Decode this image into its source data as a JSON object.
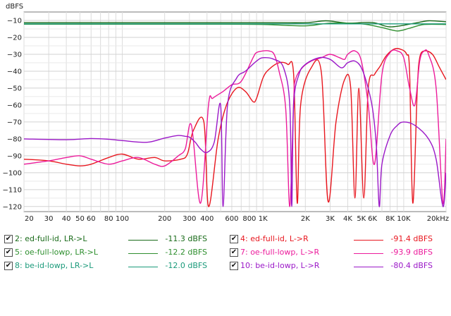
{
  "chart_data": {
    "type": "line",
    "ylabel": "dBFS",
    "xscale": "log",
    "xlim": [
      20,
      20000
    ],
    "ylim": [
      -123,
      -5
    ],
    "grid": true,
    "x_ticks": [
      {
        "value": 20,
        "label": "20"
      },
      {
        "value": 30,
        "label": "30"
      },
      {
        "value": 40,
        "label": "40"
      },
      {
        "value": 50,
        "label": "50"
      },
      {
        "value": 60,
        "label": "60"
      },
      {
        "value": 80,
        "label": "80"
      },
      {
        "value": 100,
        "label": "100"
      },
      {
        "value": 200,
        "label": "200"
      },
      {
        "value": 300,
        "label": "300"
      },
      {
        "value": 400,
        "label": "400"
      },
      {
        "value": 600,
        "label": "600"
      },
      {
        "value": 800,
        "label": "800"
      },
      {
        "value": 1000,
        "label": "1K"
      },
      {
        "value": 2000,
        "label": "2K"
      },
      {
        "value": 3000,
        "label": "3K"
      },
      {
        "value": 4000,
        "label": "4K"
      },
      {
        "value": 5000,
        "label": "5K"
      },
      {
        "value": 6000,
        "label": "6K"
      },
      {
        "value": 8000,
        "label": "8K"
      },
      {
        "value": 10000,
        "label": "10K"
      },
      {
        "value": 20000,
        "label": "20kHz"
      }
    ],
    "y_ticks": [
      -10,
      -20,
      -30,
      -40,
      -50,
      -60,
      -70,
      -80,
      -90,
      -100,
      -110,
      -120
    ],
    "series": [
      {
        "name": "2: ed-full-id, LR->L",
        "value": "-11.3 dBFS",
        "color": "#1a6b1a",
        "x": [
          20,
          100,
          1000,
          2000,
          2800,
          4000,
          6000,
          8000,
          12000,
          15000,
          20000
        ],
        "y": [
          -11.3,
          -11.3,
          -11.3,
          -11.3,
          -10.2,
          -11.6,
          -11.2,
          -13.8,
          -11.6,
          -10.2,
          -10.8
        ]
      },
      {
        "name": "5: oe-full-lowp, LR->L",
        "value": "-12.2 dBFS",
        "color": "#2f8f2f",
        "x": [
          20,
          100,
          500,
          1000,
          2000,
          3000,
          5000,
          7000,
          9000,
          11000,
          14000,
          20000
        ],
        "y": [
          -12.2,
          -12.2,
          -12.2,
          -12.4,
          -13.2,
          -11.6,
          -12.0,
          -14.2,
          -16.2,
          -14.6,
          -12.4,
          -12.4
        ]
      },
      {
        "name": "8: be-id-lowp, LR->L",
        "value": "-12.0 dBFS",
        "color": "#1a9a7a",
        "x": [
          20,
          1000,
          5000,
          10000,
          20000
        ],
        "y": [
          -12.0,
          -12.0,
          -12.0,
          -12.0,
          -12.0
        ]
      },
      {
        "name": "4: ed-full-id, L->R",
        "value": "-91.4 dBFS",
        "color": "#e8171f",
        "x": [
          20,
          30,
          40,
          50,
          60,
          80,
          100,
          130,
          170,
          200,
          260,
          290,
          320,
          380,
          410,
          480,
          550,
          650,
          750,
          850,
          900,
          1000,
          1100,
          1300,
          1500,
          1650,
          1750,
          1850,
          2200,
          2600,
          2900,
          3300,
          3800,
          4200,
          4500,
          4800,
          5200,
          5600,
          6200,
          6800,
          7500,
          8500,
          9500,
          10500,
          11000,
          11600,
          12500,
          13000,
          14000,
          16000,
          18000,
          20000
        ],
        "y": [
          -92,
          -93,
          -95,
          -96,
          -95,
          -91,
          -89,
          -92,
          -91,
          -93,
          -92,
          -89,
          -75,
          -70,
          -120,
          -80,
          -60,
          -50,
          -52,
          -58,
          -56,
          -44,
          -39,
          -35,
          -36,
          -42,
          -118,
          -60,
          -38,
          -41,
          -117,
          -70,
          -45,
          -50,
          -115,
          -50,
          -115,
          -50,
          -42,
          -37,
          -31,
          -27,
          -27,
          -30,
          -40,
          -118,
          -50,
          -32,
          -28,
          -30,
          -38,
          -45
        ]
      },
      {
        "name": "7: oe-full-lowp, L->R",
        "value": "-93.9 dBFS",
        "color": "#ec1c9c",
        "x": [
          20,
          30,
          40,
          50,
          60,
          80,
          100,
          130,
          170,
          200,
          250,
          280,
          310,
          360,
          410,
          440,
          520,
          600,
          700,
          850,
          900,
          1000,
          1100,
          1200,
          1300,
          1450,
          1550,
          1650,
          1700,
          1900,
          2200,
          2600,
          3000,
          3500,
          3800,
          4000,
          4500,
          5000,
          5600,
          6200,
          7000,
          8000,
          9000,
          10000,
          11000,
          12000,
          13000,
          14000,
          15000,
          17000,
          19000,
          20000
        ],
        "y": [
          -95,
          -93,
          -91,
          -90,
          -92,
          -95,
          -93,
          -91,
          -95,
          -96,
          -90,
          -86,
          -72,
          -118,
          -60,
          -56,
          -52,
          -48,
          -46,
          -32,
          -29,
          -28,
          -28,
          -30,
          -40,
          -62,
          -120,
          -58,
          -45,
          -38,
          -34,
          -32,
          -30,
          -32,
          -33,
          -30,
          -28,
          -34,
          -60,
          -95,
          -42,
          -29,
          -28,
          -32,
          -50,
          -60,
          -34,
          -28,
          -30,
          -50,
          -118,
          -80
        ]
      },
      {
        "name": "10: be-id-lowp, L->R",
        "value": "-80.4 dBFS",
        "color": "#9b18c8",
        "x": [
          20,
          40,
          60,
          80,
          100,
          150,
          200,
          250,
          280,
          300,
          330,
          360,
          400,
          450,
          500,
          520,
          560,
          650,
          750,
          900,
          1000,
          1200,
          1400,
          1550,
          1600,
          1650,
          1800,
          2000,
          2500,
          3000,
          3600,
          4000,
          4500,
          5000,
          5500,
          6000,
          6400,
          6700,
          7000,
          8000,
          9000,
          10000,
          12000,
          15000,
          17000,
          19000,
          20000
        ],
        "y": [
          -80,
          -80.5,
          -79.8,
          -80.2,
          -81,
          -82,
          -79.5,
          -78,
          -78.5,
          -79,
          -82,
          -86,
          -88,
          -82,
          -60,
          -120,
          -60,
          -44,
          -40,
          -34,
          -32,
          -33,
          -38,
          -60,
          -120,
          -60,
          -42,
          -36,
          -32,
          -33,
          -38,
          -35,
          -34,
          -38,
          -48,
          -62,
          -85,
          -120,
          -95,
          -78,
          -72,
          -70,
          -72,
          -80,
          -92,
          -120,
          -100
        ]
      }
    ]
  }
}
